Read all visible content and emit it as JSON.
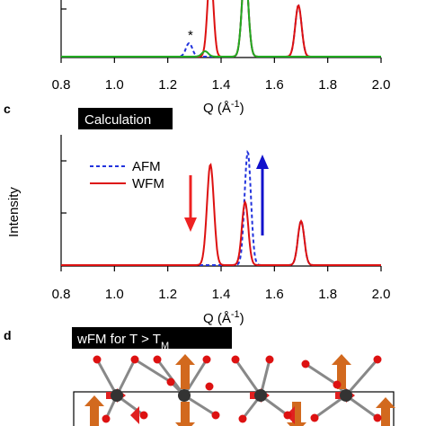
{
  "panel_top": {
    "star_label": "*",
    "xaxis_title": "Q (Å",
    "xaxis_title_sup": "-1",
    "xaxis_title_close": ")"
  },
  "panel_c": {
    "letter": "c",
    "badge": "Calculation",
    "ylabel": "Intensity"
  },
  "panel_d": {
    "letter": "d",
    "badge_prefix": "wFM for T > T",
    "badge_sub": "M"
  },
  "colors": {
    "afm": "#2233dd",
    "wfm": "#dd1111",
    "green": "#22aa22",
    "arrow_red": "#ee2222",
    "arrow_blue": "#1111cc"
  },
  "chart_data": [
    {
      "type": "line",
      "xlim": [
        0.8,
        2.0
      ],
      "xticks": [
        "0.8",
        "1.0",
        "1.2",
        "1.4",
        "1.6",
        "1.8",
        "2.0"
      ],
      "series": [
        {
          "style": "dashed",
          "color": "#2233dd",
          "peaks": [
            [
              1.28,
              0.25,
              0.012
            ],
            [
              1.49,
              1.6,
              0.012
            ],
            [
              1.69,
              0.95,
              0.012
            ]
          ]
        },
        {
          "style": "solid",
          "color": "#dd1111",
          "peaks": [
            [
              1.36,
              1.6,
              0.011
            ],
            [
              1.49,
              1.6,
              0.012
            ],
            [
              1.69,
              0.95,
              0.012
            ]
          ]
        },
        {
          "style": "solid",
          "color": "#22aa22",
          "peaks": [
            [
              1.34,
              0.1,
              0.012
            ],
            [
              1.49,
              1.6,
              0.012
            ]
          ]
        }
      ]
    },
    {
      "type": "line",
      "xlim": [
        0.8,
        2.0
      ],
      "xticks": [
        "0.8",
        "1.0",
        "1.2",
        "1.4",
        "1.6",
        "1.8",
        "2.0"
      ],
      "ylabel": "Intensity",
      "series": [
        {
          "name": "AFM",
          "style": "dashed",
          "color": "#2233dd",
          "peaks": [
            [
              1.5,
              0.9,
              0.012
            ],
            [
              1.7,
              0.35,
              0.012
            ]
          ]
        },
        {
          "name": "WFM",
          "style": "solid",
          "color": "#dd1111",
          "peaks": [
            [
              1.36,
              0.8,
              0.013
            ],
            [
              1.49,
              0.5,
              0.012
            ],
            [
              1.7,
              0.35,
              0.012
            ]
          ]
        }
      ]
    }
  ]
}
